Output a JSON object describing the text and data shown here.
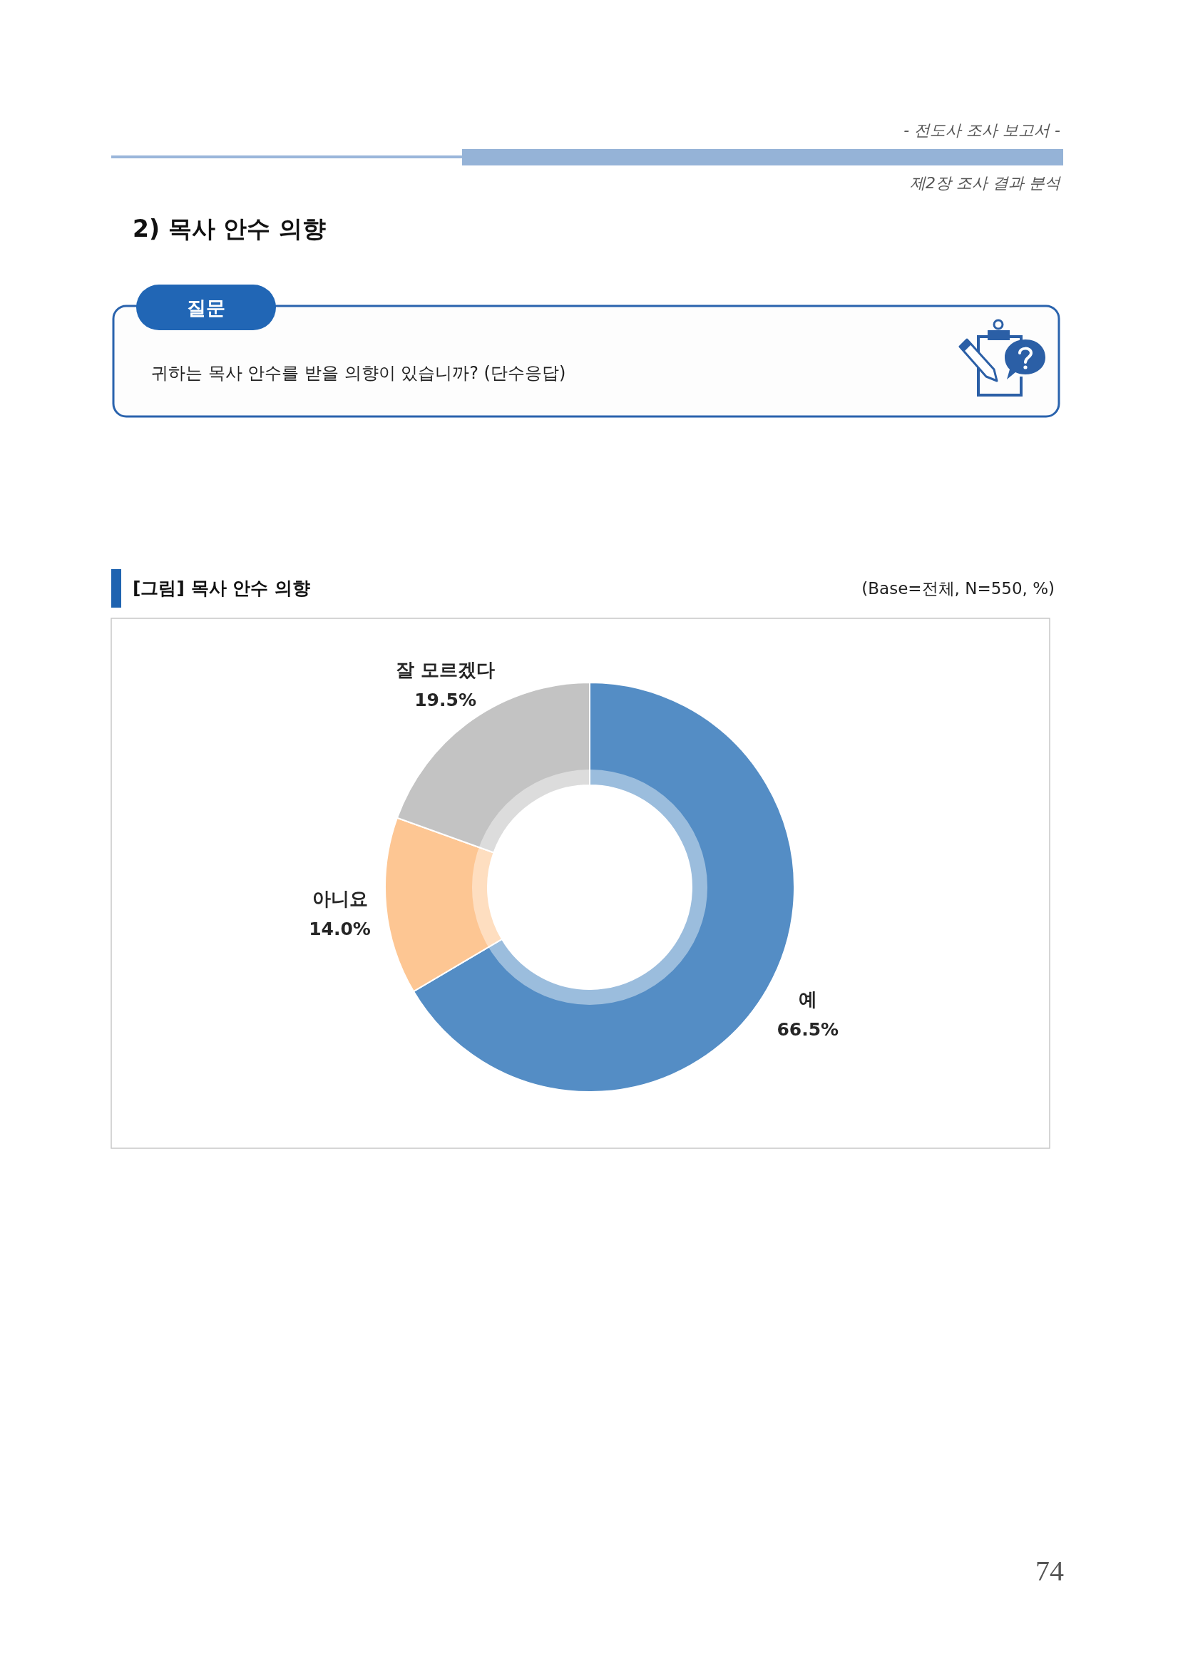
{
  "chart_data": {
    "type": "donut",
    "title": "[그림] 목사 안수 의향",
    "subtitle": "(Base=전체, N=550, %)",
    "categories": [
      "예",
      "아니요",
      "잘 모르겠다"
    ],
    "values": [
      66.5,
      14.0,
      19.5
    ],
    "colors": [
      "#548dc5",
      "#fdc693",
      "#c3c3c3"
    ],
    "value_labels": [
      "66.5%",
      "14.0%",
      "19.5%"
    ],
    "annotations": [
      "- 전도사 조사 보고서 -",
      "제2장 조사 결과 분석",
      "2) 목사 안수 의향",
      "질문",
      "귀하는 목사 안수를 받을 의향이 있습니까? (단수응답)",
      "74"
    ]
  }
}
